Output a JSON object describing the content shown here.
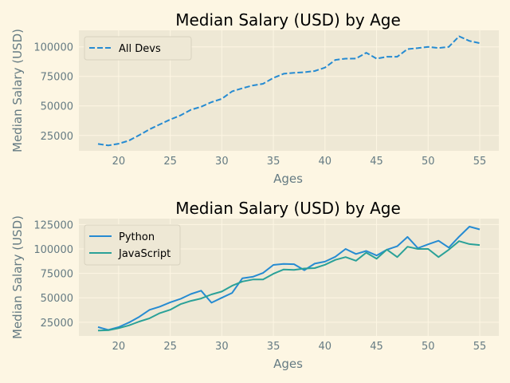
{
  "chart_data": [
    {
      "type": "line",
      "title": "Median Salary (USD) by Age",
      "xlabel": "Ages",
      "ylabel": "Median Salary (USD)",
      "xlim": [
        16.15,
        56.85
      ],
      "ylim": [
        12000,
        114000
      ],
      "xticks": [
        20,
        25,
        30,
        35,
        40,
        45,
        50,
        55
      ],
      "yticks": [
        25000,
        50000,
        75000,
        100000
      ],
      "grid": true,
      "legend_position": "top-left",
      "x": [
        18,
        19,
        20,
        21,
        22,
        23,
        24,
        25,
        26,
        27,
        28,
        29,
        30,
        31,
        32,
        33,
        34,
        35,
        36,
        37,
        38,
        39,
        40,
        41,
        42,
        43,
        44,
        45,
        46,
        47,
        48,
        49,
        50,
        51,
        52,
        53,
        54,
        55
      ],
      "series": [
        {
          "name": "All Devs",
          "color": "#268bd2",
          "dash": "dashed",
          "values": [
            17784,
            16500,
            18012,
            20628,
            25206,
            30252,
            34368,
            38496,
            42000,
            46752,
            49320,
            53200,
            56000,
            62316,
            64928,
            67317,
            68748,
            73752,
            77232,
            78000,
            78508,
            79536,
            82488,
            88935,
            90000,
            90056,
            95000,
            90000,
            91633,
            91660,
            98150,
            98964,
            100000,
            98988,
            100000,
            108923,
            105000,
            103117
          ]
        }
      ]
    },
    {
      "type": "line",
      "title": "Median Salary (USD) by Age",
      "xlabel": "Ages",
      "ylabel": "Median Salary (USD)",
      "xlim": [
        16.15,
        56.85
      ],
      "ylim": [
        11000,
        131000
      ],
      "xticks": [
        20,
        25,
        30,
        35,
        40,
        45,
        50,
        55
      ],
      "yticks": [
        25000,
        50000,
        75000,
        100000,
        125000
      ],
      "grid": true,
      "legend_position": "top-left",
      "x": [
        18,
        19,
        20,
        21,
        22,
        23,
        24,
        25,
        26,
        27,
        28,
        29,
        30,
        31,
        32,
        33,
        34,
        35,
        36,
        37,
        38,
        39,
        40,
        41,
        42,
        43,
        44,
        45,
        46,
        47,
        48,
        49,
        50,
        51,
        52,
        53,
        54,
        55
      ],
      "series": [
        {
          "name": "Python",
          "color": "#268bd2",
          "dash": "solid",
          "values": [
            20046,
            17100,
            20000,
            24744,
            30500,
            37732,
            41000,
            45372,
            48876,
            53850,
            57287,
            45000,
            50000,
            55000,
            70000,
            71496,
            75370,
            83640,
            84666,
            84392,
            78254,
            85000,
            87038,
            91991,
            100000,
            94796,
            97962,
            93302,
            99240,
            102736,
            112285,
            100771,
            104708,
            108423,
            101407,
            112542,
            122870,
            120000
          ]
        },
        {
          "name": "JavaScript",
          "color": "#2aa198",
          "dash": "solid",
          "values": [
            16446,
            16791,
            18942,
            21780,
            25704,
            29000,
            34372,
            37810,
            43515,
            46823,
            49293,
            53437,
            56373,
            62375,
            66674,
            68745,
            68746,
            74583,
            79000,
            78508,
            79996,
            80403,
            83820,
            88833,
            91660,
            87892,
            96243,
            90000,
            99313,
            91660,
            102264,
            100000,
            100000,
            91660,
            99240,
            108000,
            105000,
            104000
          ]
        }
      ]
    }
  ]
}
